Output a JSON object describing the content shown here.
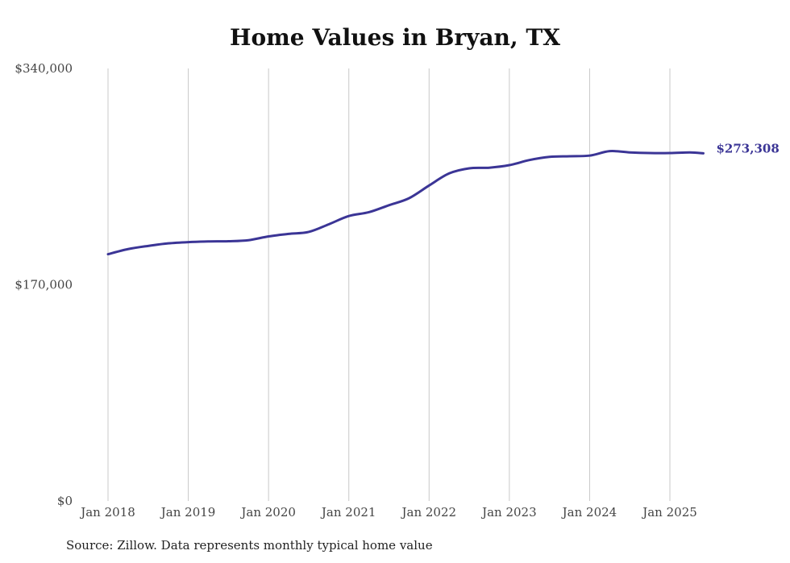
{
  "chart_data": {
    "type": "line",
    "title": "Home Values in Bryan, TX",
    "xlabel": "",
    "ylabel": "",
    "ylim": [
      0,
      340000
    ],
    "y_ticks": [
      {
        "value": 0,
        "label": "$0"
      },
      {
        "value": 170000,
        "label": "$170,000"
      },
      {
        "value": 340000,
        "label": "$340,000"
      }
    ],
    "x_ticks": [
      {
        "date": "2018-01",
        "label": "Jan 2018"
      },
      {
        "date": "2019-01",
        "label": "Jan 2019"
      },
      {
        "date": "2020-01",
        "label": "Jan 2020"
      },
      {
        "date": "2021-01",
        "label": "Jan 2021"
      },
      {
        "date": "2022-01",
        "label": "Jan 2022"
      },
      {
        "date": "2023-01",
        "label": "Jan 2023"
      },
      {
        "date": "2024-01",
        "label": "Jan 2024"
      },
      {
        "date": "2025-01",
        "label": "Jan 2025"
      }
    ],
    "xlim": [
      "2018-01",
      "2025-06"
    ],
    "grid": "vertical",
    "line_color": "#3b3596",
    "end_label": "$273,308",
    "series": [
      {
        "points": [
          {
            "x": "2018-01",
            "y": 194000
          },
          {
            "x": "2018-04",
            "y": 198000
          },
          {
            "x": "2018-07",
            "y": 200500
          },
          {
            "x": "2018-10",
            "y": 202500
          },
          {
            "x": "2019-01",
            "y": 203500
          },
          {
            "x": "2019-04",
            "y": 204000
          },
          {
            "x": "2019-07",
            "y": 204200
          },
          {
            "x": "2019-10",
            "y": 205000
          },
          {
            "x": "2020-01",
            "y": 208000
          },
          {
            "x": "2020-04",
            "y": 210000
          },
          {
            "x": "2020-07",
            "y": 211500
          },
          {
            "x": "2020-10",
            "y": 217500
          },
          {
            "x": "2021-01",
            "y": 224000
          },
          {
            "x": "2021-04",
            "y": 227000
          },
          {
            "x": "2021-07",
            "y": 232500
          },
          {
            "x": "2021-10",
            "y": 238000
          },
          {
            "x": "2022-01",
            "y": 248000
          },
          {
            "x": "2022-04",
            "y": 257500
          },
          {
            "x": "2022-07",
            "y": 261500
          },
          {
            "x": "2022-10",
            "y": 262000
          },
          {
            "x": "2023-01",
            "y": 264000
          },
          {
            "x": "2023-04",
            "y": 268000
          },
          {
            "x": "2023-07",
            "y": 270500
          },
          {
            "x": "2023-10",
            "y": 271000
          },
          {
            "x": "2024-01",
            "y": 271500
          },
          {
            "x": "2024-04",
            "y": 275000
          },
          {
            "x": "2024-07",
            "y": 274000
          },
          {
            "x": "2024-10",
            "y": 273500
          },
          {
            "x": "2025-01",
            "y": 273500
          },
          {
            "x": "2025-04",
            "y": 274000
          },
          {
            "x": "2025-06",
            "y": 273308
          }
        ]
      }
    ]
  },
  "source_note": "Source: Zillow. Data represents monthly typical home value"
}
